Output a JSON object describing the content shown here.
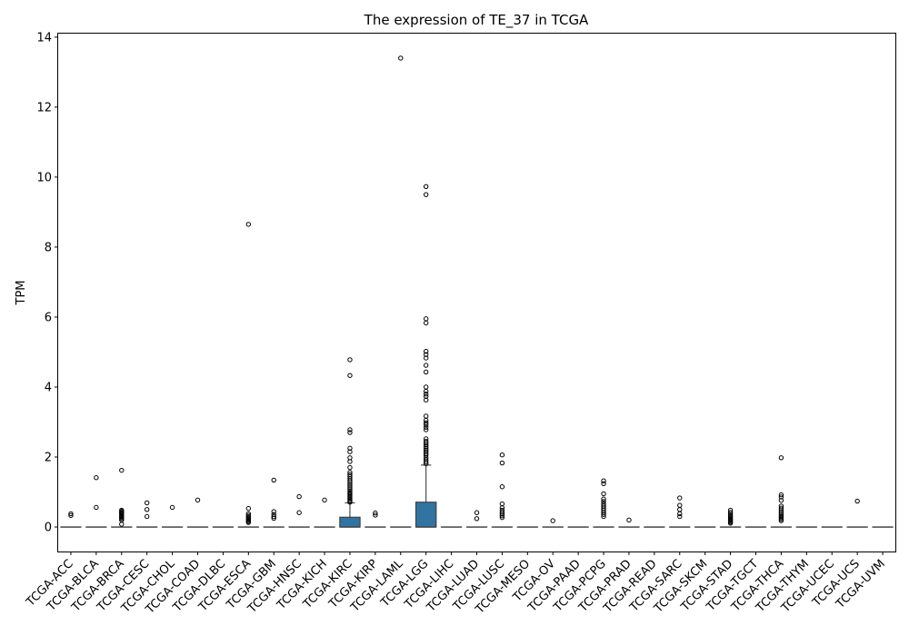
{
  "chart_data": {
    "type": "box",
    "title": "The expression of TE_37 in TCGA",
    "xlabel": "",
    "ylabel": "TPM",
    "ylim": [
      -0.7,
      14.1
    ],
    "yticks": [
      0,
      2,
      4,
      6,
      8,
      10,
      12,
      14
    ],
    "box_color": "#3274a1",
    "categories": [
      "TCGA-ACC",
      "TCGA-BLCA",
      "TCGA-BRCA",
      "TCGA-CESC",
      "TCGA-CHOL",
      "TCGA-COAD",
      "TCGA-DLBC",
      "TCGA-ESCA",
      "TCGA-GBM",
      "TCGA-HNSC",
      "TCGA-KICH",
      "TCGA-KIRC",
      "TCGA-KIRP",
      "TCGA-LAML",
      "TCGA-LGG",
      "TCGA-LIHC",
      "TCGA-LUAD",
      "TCGA-LUSC",
      "TCGA-MESO",
      "TCGA-OV",
      "TCGA-PAAD",
      "TCGA-PCPG",
      "TCGA-PRAD",
      "TCGA-READ",
      "TCGA-SARC",
      "TCGA-SKCM",
      "TCGA-STAD",
      "TCGA-TGCT",
      "TCGA-THCA",
      "TCGA-THYM",
      "TCGA-UCEC",
      "TCGA-UCS",
      "TCGA-UVM"
    ],
    "boxes": [
      {
        "q1": 0,
        "median": 0,
        "q3": 0,
        "whisker_low": 0,
        "whisker_high": 0,
        "outliers": [
          0.33,
          0.38
        ]
      },
      {
        "q1": 0,
        "median": 0,
        "q3": 0,
        "whisker_low": 0,
        "whisker_high": 0,
        "outliers": [
          1.41,
          0.56
        ]
      },
      {
        "q1": 0,
        "median": 0,
        "q3": 0,
        "whisker_low": 0,
        "whisker_high": 0,
        "outliers": [
          1.62,
          0.48,
          0.45,
          0.42,
          0.4,
          0.37,
          0.33,
          0.3,
          0.27,
          0.24,
          0.2,
          0.08
        ]
      },
      {
        "q1": 0,
        "median": 0,
        "q3": 0,
        "whisker_low": 0,
        "whisker_high": 0,
        "outliers": [
          0.69,
          0.5,
          0.3
        ]
      },
      {
        "q1": 0,
        "median": 0,
        "q3": 0,
        "whisker_low": 0,
        "whisker_high": 0,
        "outliers": [
          0.56
        ]
      },
      {
        "q1": 0,
        "median": 0,
        "q3": 0,
        "whisker_low": 0,
        "whisker_high": 0,
        "outliers": [
          0.77
        ]
      },
      {
        "q1": 0,
        "median": 0,
        "q3": 0,
        "whisker_low": 0,
        "whisker_high": 0,
        "outliers": []
      },
      {
        "q1": 0,
        "median": 0,
        "q3": 0,
        "whisker_low": 0,
        "whisker_high": 0,
        "outliers": [
          8.65,
          0.53,
          0.38,
          0.33,
          0.29,
          0.25,
          0.22,
          0.19,
          0.16,
          0.13
        ]
      },
      {
        "q1": 0,
        "median": 0,
        "q3": 0,
        "whisker_low": 0,
        "whisker_high": 0,
        "outliers": [
          1.34,
          0.44,
          0.36,
          0.3,
          0.25
        ]
      },
      {
        "q1": 0,
        "median": 0,
        "q3": 0,
        "whisker_low": 0,
        "whisker_high": 0,
        "outliers": [
          0.87,
          0.41
        ]
      },
      {
        "q1": 0,
        "median": 0,
        "q3": 0,
        "whisker_low": 0,
        "whisker_high": 0,
        "outliers": [
          0.77
        ]
      },
      {
        "q1": 0,
        "median": 0,
        "q3": 0.28,
        "whisker_low": 0,
        "whisker_high": 0.69,
        "outliers": [
          4.78,
          4.33,
          2.78,
          2.7,
          2.25,
          2.15,
          1.98,
          1.87,
          1.7,
          1.56,
          1.5,
          1.44,
          1.38,
          1.32,
          1.27,
          1.22,
          1.17,
          1.12,
          1.07,
          1.02,
          0.98,
          0.94,
          0.9,
          0.86,
          0.82,
          0.78,
          0.74,
          0.71
        ]
      },
      {
        "q1": 0,
        "median": 0,
        "q3": 0,
        "whisker_low": 0,
        "whisker_high": 0,
        "outliers": [
          0.4,
          0.34
        ]
      },
      {
        "q1": 0,
        "median": 0,
        "q3": 0,
        "whisker_low": 0,
        "whisker_high": 0,
        "outliers": [
          13.4
        ]
      },
      {
        "q1": 0,
        "median": 0,
        "q3": 0.71,
        "whisker_low": 0,
        "whisker_high": 1.77,
        "outliers": [
          9.73,
          9.5,
          5.95,
          5.83,
          5.02,
          4.93,
          4.83,
          4.62,
          4.43,
          4.0,
          3.88,
          3.8,
          3.73,
          3.63,
          3.17,
          3.05,
          2.98,
          2.92,
          2.85,
          2.78,
          2.52,
          2.45,
          2.4,
          2.35,
          2.3,
          2.25,
          2.2,
          2.15,
          2.1,
          2.05,
          1.98,
          1.92,
          1.86,
          1.81
        ]
      },
      {
        "q1": 0,
        "median": 0,
        "q3": 0,
        "whisker_low": 0,
        "whisker_high": 0,
        "outliers": []
      },
      {
        "q1": 0,
        "median": 0,
        "q3": 0,
        "whisker_low": 0,
        "whisker_high": 0,
        "outliers": [
          0.41,
          0.24
        ]
      },
      {
        "q1": 0,
        "median": 0,
        "q3": 0,
        "whisker_low": 0,
        "whisker_high": 0,
        "outliers": [
          2.06,
          1.83,
          1.15,
          0.66,
          0.55,
          0.48,
          0.42,
          0.37,
          0.32,
          0.27
        ]
      },
      {
        "q1": 0,
        "median": 0,
        "q3": 0,
        "whisker_low": 0,
        "whisker_high": 0,
        "outliers": []
      },
      {
        "q1": 0,
        "median": 0,
        "q3": 0,
        "whisker_low": 0,
        "whisker_high": 0,
        "outliers": [
          0.18
        ]
      },
      {
        "q1": 0,
        "median": 0,
        "q3": 0,
        "whisker_low": 0,
        "whisker_high": 0,
        "outliers": []
      },
      {
        "q1": 0,
        "median": 0,
        "q3": 0,
        "whisker_low": 0,
        "whisker_high": 0,
        "outliers": [
          1.32,
          1.24,
          0.95,
          0.8,
          0.73,
          0.66,
          0.6,
          0.54,
          0.48,
          0.42,
          0.36,
          0.3
        ]
      },
      {
        "q1": 0,
        "median": 0,
        "q3": 0,
        "whisker_low": 0,
        "whisker_high": 0,
        "outliers": [
          0.2
        ]
      },
      {
        "q1": 0,
        "median": 0,
        "q3": 0,
        "whisker_low": 0,
        "whisker_high": 0,
        "outliers": []
      },
      {
        "q1": 0,
        "median": 0,
        "q3": 0,
        "whisker_low": 0,
        "whisker_high": 0,
        "outliers": [
          0.83,
          0.62,
          0.5,
          0.38,
          0.3
        ]
      },
      {
        "q1": 0,
        "median": 0,
        "q3": 0,
        "whisker_low": 0,
        "whisker_high": 0,
        "outliers": []
      },
      {
        "q1": 0,
        "median": 0,
        "q3": 0,
        "whisker_low": 0,
        "whisker_high": 0,
        "outliers": [
          0.48,
          0.42,
          0.37,
          0.33,
          0.29,
          0.26,
          0.23,
          0.2,
          0.17,
          0.14,
          0.11
        ]
      },
      {
        "q1": 0,
        "median": 0,
        "q3": 0,
        "whisker_low": 0,
        "whisker_high": 0,
        "outliers": []
      },
      {
        "q1": 0,
        "median": 0,
        "q3": 0,
        "whisker_low": 0,
        "whisker_high": 0,
        "outliers": [
          1.98,
          0.92,
          0.86,
          0.76,
          0.6,
          0.54,
          0.49,
          0.44,
          0.39,
          0.34,
          0.3,
          0.26,
          0.22,
          0.18
        ]
      },
      {
        "q1": 0,
        "median": 0,
        "q3": 0,
        "whisker_low": 0,
        "whisker_high": 0,
        "outliers": []
      },
      {
        "q1": 0,
        "median": 0,
        "q3": 0,
        "whisker_low": 0,
        "whisker_high": 0,
        "outliers": []
      },
      {
        "q1": 0,
        "median": 0,
        "q3": 0,
        "whisker_low": 0,
        "whisker_high": 0,
        "outliers": [
          0.74
        ]
      },
      {
        "q1": 0,
        "median": 0,
        "q3": 0,
        "whisker_low": 0,
        "whisker_high": 0,
        "outliers": []
      }
    ]
  }
}
